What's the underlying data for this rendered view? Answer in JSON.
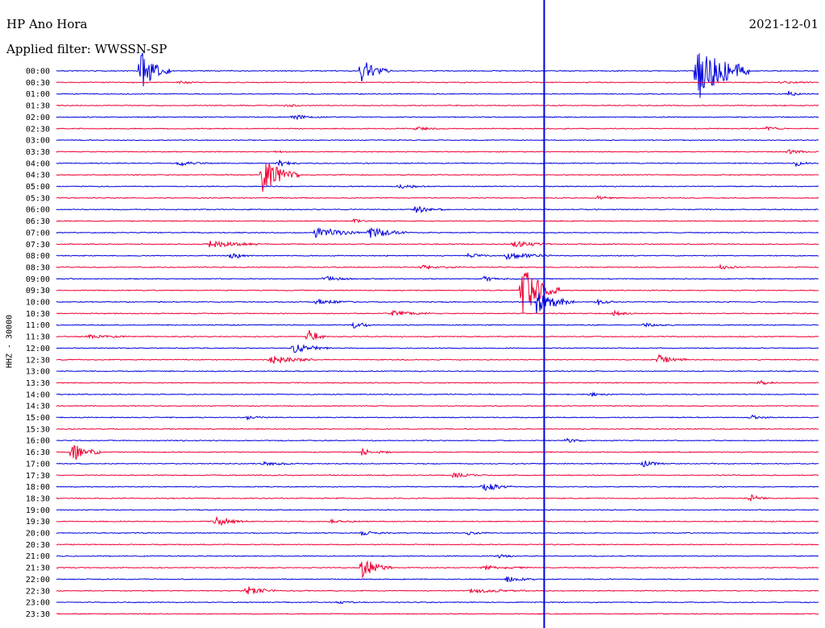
{
  "header": {
    "station": "HP Ano Hora",
    "filter": "Applied filter: WWSSN-SP",
    "date": "2021-12-01"
  },
  "chart_data": {
    "type": "line",
    "title": "HP Ano Hora",
    "subtitle": "Applied filter: WWSSN-SP",
    "date": "2021-12-01",
    "ylabel": "HHZ - 30000",
    "categories": [
      "00:00",
      "00:30",
      "01:00",
      "01:30",
      "02:00",
      "02:30",
      "03:00",
      "03:30",
      "04:00",
      "04:30",
      "05:00",
      "05:30",
      "06:00",
      "06:30",
      "07:00",
      "07:30",
      "08:00",
      "08:30",
      "09:00",
      "09:30",
      "10:00",
      "10:30",
      "11:00",
      "11:30",
      "12:00",
      "12:30",
      "13:00",
      "13:30",
      "14:00",
      "14:30",
      "15:00",
      "15:30",
      "16:00",
      "16:30",
      "17:00",
      "17:30",
      "18:00",
      "18:30",
      "19:00",
      "19:30",
      "20:00",
      "20:30",
      "21:00",
      "21:30",
      "22:00",
      "22:30",
      "23:00",
      "23:30"
    ],
    "colors": {
      "even": "#0000dd",
      "odd": "#ee0033",
      "marker": "#0000dd"
    },
    "marker_fraction": 0.64,
    "events": [
      {
        "row": 0,
        "x": 0.11,
        "amp": 3.8,
        "dur": 0.02
      },
      {
        "row": 0,
        "x": 0.4,
        "amp": 2.2,
        "dur": 0.02
      },
      {
        "row": 0,
        "x": 0.84,
        "amp": 5.5,
        "dur": 0.05
      },
      {
        "row": 1,
        "x": 0.16,
        "amp": 0.25,
        "dur": 0.02
      },
      {
        "row": 1,
        "x": 0.95,
        "amp": 0.25,
        "dur": 0.02
      },
      {
        "row": 2,
        "x": 0.96,
        "amp": 0.5,
        "dur": 0.01
      },
      {
        "row": 3,
        "x": 0.3,
        "amp": 0.35,
        "dur": 0.01
      },
      {
        "row": 4,
        "x": 0.31,
        "amp": 0.5,
        "dur": 0.02
      },
      {
        "row": 5,
        "x": 0.47,
        "amp": 0.35,
        "dur": 0.02
      },
      {
        "row": 5,
        "x": 0.93,
        "amp": 0.45,
        "dur": 0.01
      },
      {
        "row": 7,
        "x": 0.29,
        "amp": 0.3,
        "dur": 0.01
      },
      {
        "row": 7,
        "x": 0.96,
        "amp": 0.35,
        "dur": 0.02
      },
      {
        "row": 8,
        "x": 0.16,
        "amp": 0.45,
        "dur": 0.02
      },
      {
        "row": 8,
        "x": 0.29,
        "amp": 0.9,
        "dur": 0.01
      },
      {
        "row": 8,
        "x": 0.97,
        "amp": 0.5,
        "dur": 0.01
      },
      {
        "row": 9,
        "x": 0.27,
        "amp": 3.2,
        "dur": 0.03
      },
      {
        "row": 10,
        "x": 0.45,
        "amp": 0.4,
        "dur": 0.02
      },
      {
        "row": 11,
        "x": 0.71,
        "amp": 0.4,
        "dur": 0.01
      },
      {
        "row": 12,
        "x": 0.47,
        "amp": 0.7,
        "dur": 0.02
      },
      {
        "row": 13,
        "x": 0.39,
        "amp": 0.3,
        "dur": 0.01
      },
      {
        "row": 14,
        "x": 0.34,
        "amp": 1.1,
        "dur": 0.04
      },
      {
        "row": 14,
        "x": 0.41,
        "amp": 1.0,
        "dur": 0.03
      },
      {
        "row": 15,
        "x": 0.2,
        "amp": 0.6,
        "dur": 0.05
      },
      {
        "row": 15,
        "x": 0.6,
        "amp": 0.6,
        "dur": 0.03
      },
      {
        "row": 16,
        "x": 0.23,
        "amp": 0.8,
        "dur": 0.01
      },
      {
        "row": 16,
        "x": 0.54,
        "amp": 0.7,
        "dur": 0.01
      },
      {
        "row": 16,
        "x": 0.59,
        "amp": 0.6,
        "dur": 0.04
      },
      {
        "row": 17,
        "x": 0.48,
        "amp": 0.3,
        "dur": 0.03
      },
      {
        "row": 17,
        "x": 0.87,
        "amp": 0.4,
        "dur": 0.02
      },
      {
        "row": 18,
        "x": 0.35,
        "amp": 0.6,
        "dur": 0.02
      },
      {
        "row": 18,
        "x": 0.56,
        "amp": 0.4,
        "dur": 0.03
      },
      {
        "row": 19,
        "x": 0.61,
        "amp": 4.5,
        "dur": 0.03
      },
      {
        "row": 20,
        "x": 0.34,
        "amp": 0.5,
        "dur": 0.03
      },
      {
        "row": 20,
        "x": 0.63,
        "amp": 2.0,
        "dur": 0.03
      },
      {
        "row": 20,
        "x": 0.71,
        "amp": 0.6,
        "dur": 0.01
      },
      {
        "row": 21,
        "x": 0.44,
        "amp": 0.5,
        "dur": 0.03
      },
      {
        "row": 21,
        "x": 0.73,
        "amp": 0.6,
        "dur": 0.01
      },
      {
        "row": 22,
        "x": 0.39,
        "amp": 0.9,
        "dur": 0.01
      },
      {
        "row": 22,
        "x": 0.77,
        "amp": 0.35,
        "dur": 0.02
      },
      {
        "row": 23,
        "x": 0.04,
        "amp": 0.3,
        "dur": 0.04
      },
      {
        "row": 23,
        "x": 0.33,
        "amp": 1.8,
        "dur": 0.01
      },
      {
        "row": 24,
        "x": 0.31,
        "amp": 1.0,
        "dur": 0.03
      },
      {
        "row": 25,
        "x": 0.28,
        "amp": 0.8,
        "dur": 0.04
      },
      {
        "row": 25,
        "x": 0.79,
        "amp": 0.8,
        "dur": 0.02
      },
      {
        "row": 27,
        "x": 0.92,
        "amp": 0.5,
        "dur": 0.01
      },
      {
        "row": 28,
        "x": 0.7,
        "amp": 0.4,
        "dur": 0.01
      },
      {
        "row": 30,
        "x": 0.25,
        "amp": 0.5,
        "dur": 0.01
      },
      {
        "row": 30,
        "x": 0.91,
        "amp": 0.5,
        "dur": 0.01
      },
      {
        "row": 32,
        "x": 0.67,
        "amp": 0.4,
        "dur": 0.01
      },
      {
        "row": 33,
        "x": 0.02,
        "amp": 2.1,
        "dur": 0.02
      },
      {
        "row": 33,
        "x": 0.4,
        "amp": 0.6,
        "dur": 0.02
      },
      {
        "row": 34,
        "x": 0.27,
        "amp": 0.3,
        "dur": 0.03
      },
      {
        "row": 34,
        "x": 0.77,
        "amp": 0.7,
        "dur": 0.01
      },
      {
        "row": 35,
        "x": 0.52,
        "amp": 0.4,
        "dur": 0.03
      },
      {
        "row": 36,
        "x": 0.56,
        "amp": 0.9,
        "dur": 0.02
      },
      {
        "row": 37,
        "x": 0.91,
        "amp": 0.7,
        "dur": 0.01
      },
      {
        "row": 39,
        "x": 0.21,
        "amp": 0.9,
        "dur": 0.02
      },
      {
        "row": 39,
        "x": 0.36,
        "amp": 0.3,
        "dur": 0.02
      },
      {
        "row": 40,
        "x": 0.4,
        "amp": 0.4,
        "dur": 0.02
      },
      {
        "row": 40,
        "x": 0.54,
        "amp": 0.3,
        "dur": 0.01
      },
      {
        "row": 42,
        "x": 0.58,
        "amp": 0.3,
        "dur": 0.01
      },
      {
        "row": 43,
        "x": 0.4,
        "amp": 2.1,
        "dur": 0.02
      },
      {
        "row": 43,
        "x": 0.56,
        "amp": 0.4,
        "dur": 0.04
      },
      {
        "row": 44,
        "x": 0.59,
        "amp": 0.5,
        "dur": 0.02
      },
      {
        "row": 45,
        "x": 0.25,
        "amp": 1.0,
        "dur": 0.02
      },
      {
        "row": 45,
        "x": 0.54,
        "amp": 0.4,
        "dur": 0.06
      },
      {
        "row": 46,
        "x": 0.37,
        "amp": 0.2,
        "dur": 0.02
      }
    ]
  }
}
